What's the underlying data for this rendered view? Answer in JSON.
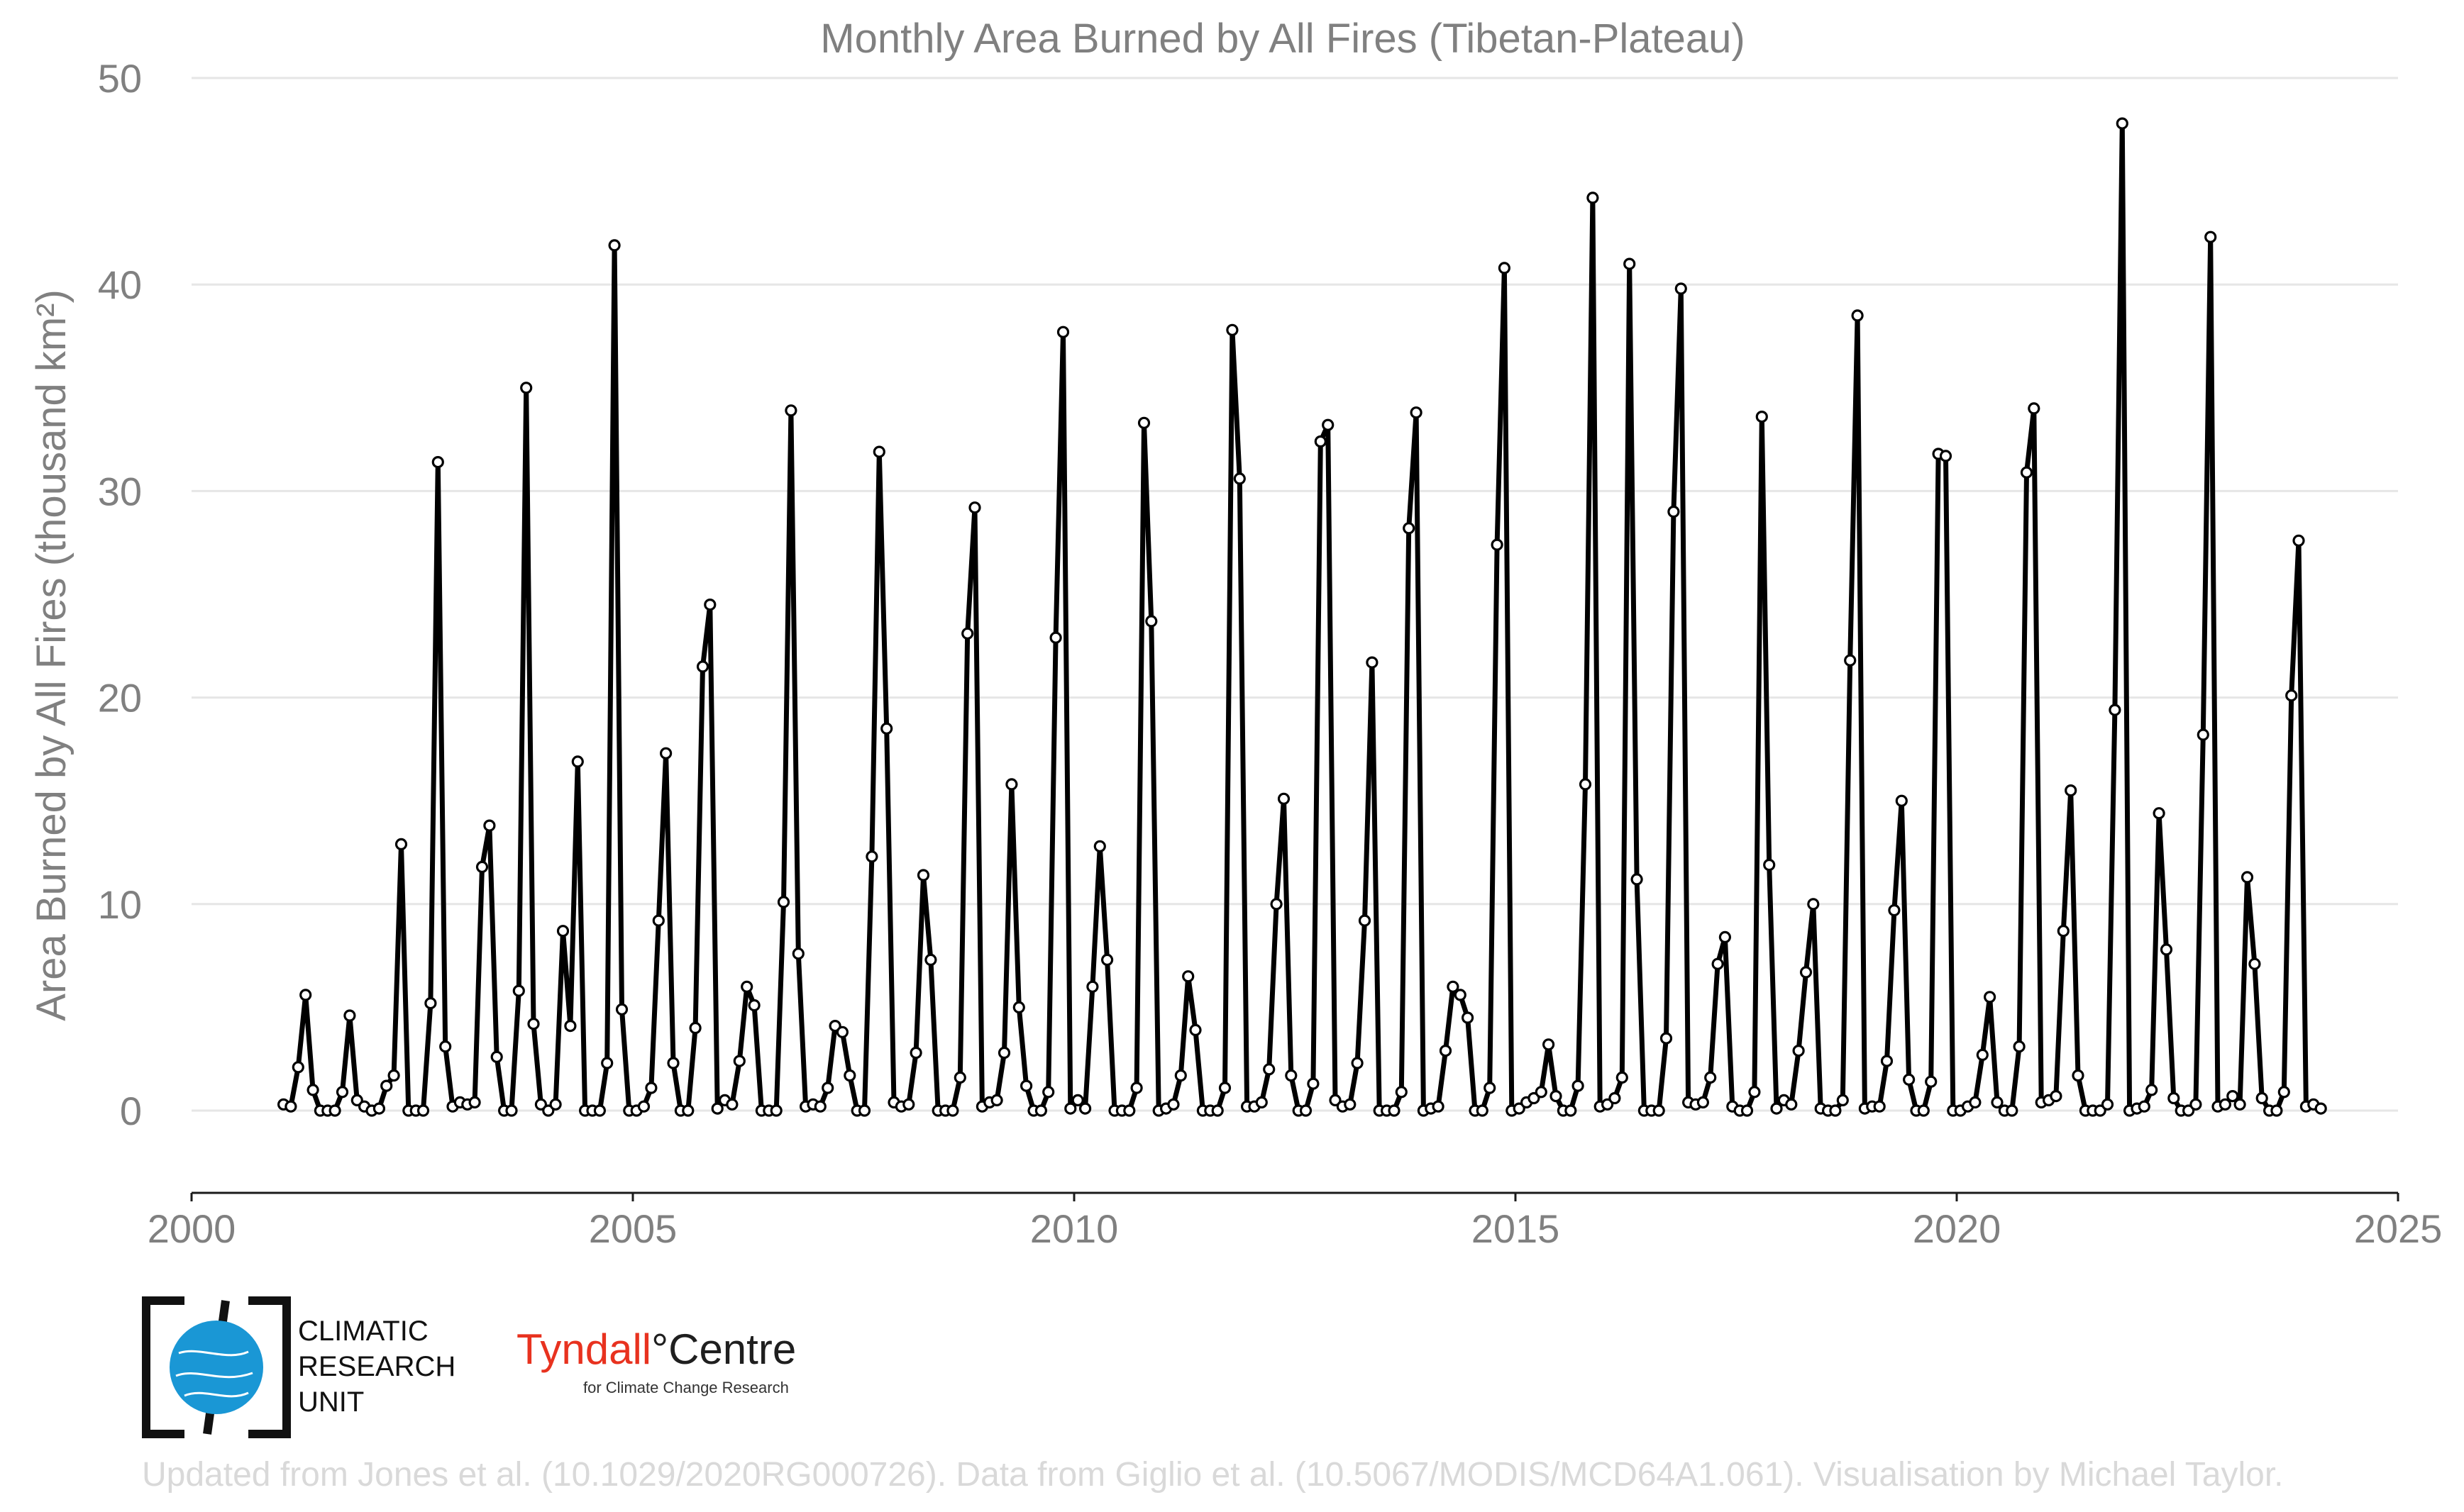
{
  "chart_data": {
    "type": "line",
    "title": "Monthly Area Burned by All Fires (Tibetan-Plateau)",
    "xlabel": "",
    "ylabel": "Area Burned by All Fires (thousand km²)",
    "xlim": [
      2000,
      2025
    ],
    "ylim": [
      -4,
      50
    ],
    "x_ticks": [
      2000,
      2005,
      2010,
      2015,
      2020,
      2025
    ],
    "y_ticks": [
      0,
      10,
      20,
      30,
      40,
      50
    ],
    "grid": "horizontal",
    "legend": "none",
    "x_start": "2001-01",
    "x_step": "1 month",
    "series": [
      {
        "color": "#000000",
        "values": [
          0.3,
          0.2,
          2.1,
          5.6,
          1.0,
          0.0,
          0.0,
          0.0,
          0.9,
          4.6,
          0.5,
          0.2,
          0.0,
          0.1,
          1.2,
          1.7,
          12.9,
          0.0,
          0.0,
          0.0,
          5.2,
          31.4,
          3.1,
          0.2,
          0.4,
          0.3,
          0.4,
          11.8,
          13.8,
          2.6,
          0.0,
          0.0,
          5.8,
          35.0,
          4.2,
          0.3,
          0.0,
          0.3,
          8.7,
          4.1,
          16.9,
          0.0,
          0.0,
          0.0,
          2.3,
          41.9,
          4.9,
          0.0,
          0.0,
          0.2,
          1.1,
          9.2,
          17.3,
          2.3,
          0.0,
          0.0,
          4.0,
          21.5,
          24.5,
          0.1,
          0.5,
          0.3,
          2.4,
          6.0,
          5.1,
          0.0,
          0.0,
          0.0,
          10.1,
          33.9,
          7.6,
          0.2,
          0.3,
          0.2,
          1.1,
          4.1,
          3.8,
          1.7,
          0.0,
          0.0,
          12.3,
          31.9,
          18.5,
          0.4,
          0.2,
          0.3,
          2.8,
          11.4,
          7.3,
          0.0,
          0.0,
          0.0,
          1.6,
          23.1,
          29.2,
          0.2,
          0.4,
          0.5,
          2.8,
          15.8,
          5.0,
          1.2,
          0.0,
          0.0,
          0.9,
          22.9,
          37.7,
          0.1,
          0.5,
          0.1,
          6.0,
          12.8,
          7.3,
          0.0,
          0.0,
          0.0,
          1.1,
          33.3,
          23.7,
          0.0,
          0.1,
          0.3,
          1.7,
          6.5,
          3.9,
          0.0,
          0.0,
          0.0,
          1.1,
          37.8,
          30.6,
          0.2,
          0.2,
          0.4,
          2.0,
          10.0,
          15.1,
          1.7,
          0.0,
          0.0,
          1.3,
          32.4,
          33.2,
          0.5,
          0.2,
          0.3,
          2.3,
          9.2,
          21.7,
          0.0,
          0.0,
          0.0,
          0.9,
          28.2,
          33.8,
          0.0,
          0.1,
          0.2,
          2.9,
          6.0,
          5.6,
          4.5,
          0.0,
          0.0,
          1.1,
          27.4,
          40.8,
          0.0,
          0.1,
          0.4,
          0.6,
          0.9,
          3.2,
          0.7,
          0.0,
          0.0,
          1.2,
          15.8,
          44.2,
          0.2,
          0.3,
          0.6,
          1.6,
          41.0,
          11.2,
          0.0,
          0.0,
          0.0,
          3.5,
          29.0,
          39.8,
          0.4,
          0.3,
          0.4,
          1.6,
          7.1,
          8.4,
          0.2,
          0.0,
          0.0,
          0.9,
          33.6,
          11.9,
          0.1,
          0.5,
          0.3,
          2.9,
          6.7,
          10.0,
          0.1,
          0.0,
          0.0,
          0.5,
          21.8,
          38.5,
          0.1,
          0.2,
          0.2,
          2.4,
          9.7,
          15.0,
          1.5,
          0.0,
          0.0,
          1.4,
          31.8,
          31.7,
          0.0,
          0.0,
          0.2,
          0.4,
          2.7,
          5.5,
          0.4,
          0.0,
          0.0,
          3.1,
          30.9,
          34.0,
          0.4,
          0.5,
          0.7,
          8.7,
          15.5,
          1.7,
          0.0,
          0.0,
          0.0,
          0.3,
          19.4,
          47.8,
          0.0,
          0.1,
          0.2,
          1.0,
          14.4,
          7.8,
          0.6,
          0.0,
          0.0,
          0.3,
          18.2,
          42.3,
          0.2,
          0.3,
          0.7,
          0.3,
          11.3,
          7.1,
          0.6,
          0.0,
          0.0,
          0.9,
          20.1,
          27.6,
          0.2,
          0.3,
          0.1
        ]
      }
    ]
  },
  "logos": {
    "cru_lines": [
      "CLIMATIC",
      "RESEARCH",
      "UNIT"
    ],
    "tyndall_part1": "Tyndall",
    "tyndall_degree": "°",
    "tyndall_part2": "Centre",
    "tyndall_sub": "for Climate Change Research"
  },
  "credit": "Updated from Jones et al. (10.1029/2020RG000726). Data from Giglio et al. (10.5067/MODIS/MCD64A1.061). Visualisation by Michael Taylor."
}
